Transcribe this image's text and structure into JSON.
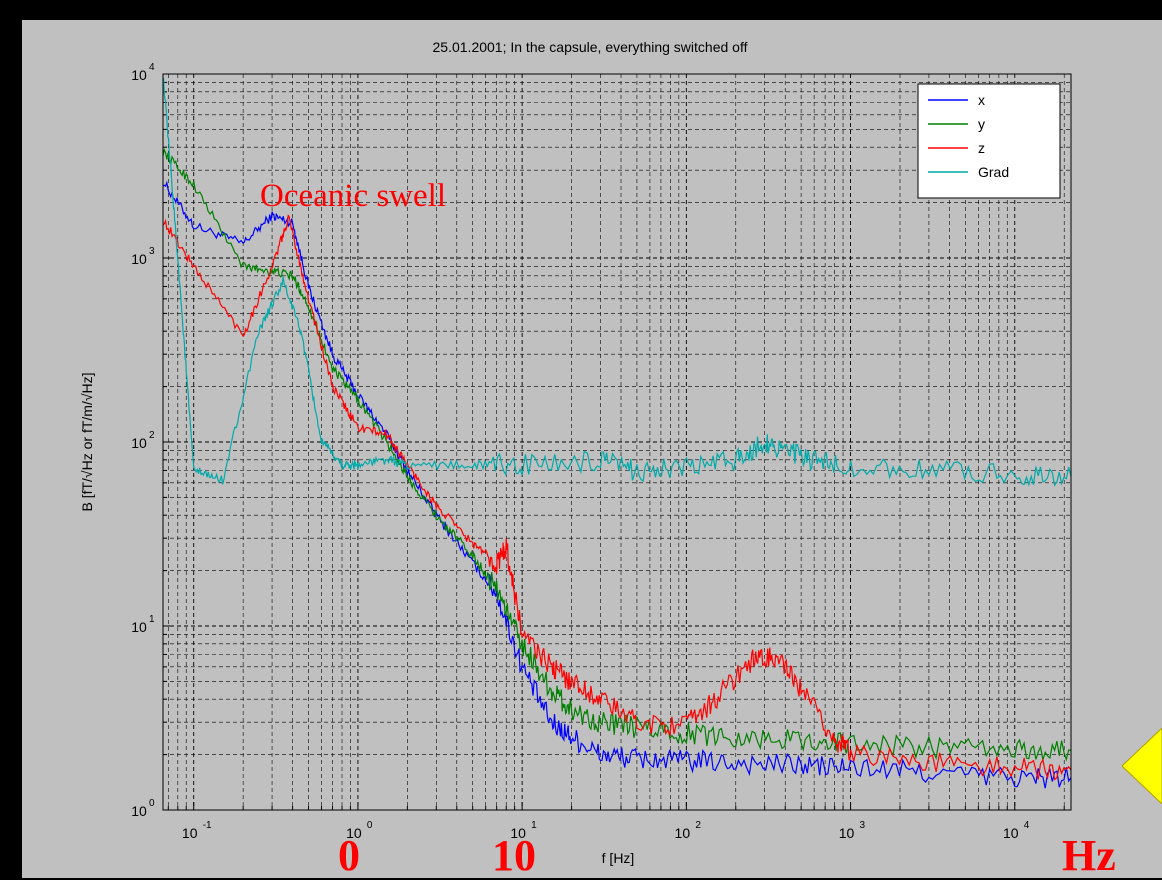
{
  "chart_data": {
    "type": "line",
    "title": "25.01.2001; In the capsule, everything switched off",
    "xlabel": "f [Hz]",
    "ylabel": "B [fT/√Hz or fT/m/√Hz]",
    "xscale": "log",
    "yscale": "log",
    "xlim": [
      0.065,
      22000
    ],
    "ylim": [
      1,
      10000
    ],
    "x_ticks": [
      {
        "base": "10",
        "exp": "-1"
      },
      {
        "base": "10",
        "exp": "0"
      },
      {
        "base": "10",
        "exp": "1"
      },
      {
        "base": "10",
        "exp": "2"
      },
      {
        "base": "10",
        "exp": "3"
      },
      {
        "base": "10",
        "exp": "4"
      }
    ],
    "y_ticks": [
      {
        "base": "10",
        "exp": "0"
      },
      {
        "base": "10",
        "exp": "1"
      },
      {
        "base": "10",
        "exp": "2"
      },
      {
        "base": "10",
        "exp": "3"
      },
      {
        "base": "10",
        "exp": "4"
      }
    ],
    "grid": true,
    "legend_position": "top-right",
    "series": [
      {
        "name": "x",
        "color": "#0000ff",
        "points": [
          [
            0.065,
            2600
          ],
          [
            0.1,
            1500
          ],
          [
            0.2,
            1200
          ],
          [
            0.3,
            1700
          ],
          [
            0.4,
            1550
          ],
          [
            0.5,
            700
          ],
          [
            0.7,
            300
          ],
          [
            1,
            180
          ],
          [
            1.5,
            110
          ],
          [
            2,
            70
          ],
          [
            3,
            40
          ],
          [
            5,
            22
          ],
          [
            7,
            15
          ],
          [
            10,
            6
          ],
          [
            15,
            3
          ],
          [
            20,
            2.5
          ],
          [
            30,
            2
          ],
          [
            50,
            1.9
          ],
          [
            100,
            1.85
          ],
          [
            200,
            1.8
          ],
          [
            500,
            1.75
          ],
          [
            1000,
            1.7
          ],
          [
            3000,
            1.6
          ],
          [
            10000,
            1.5
          ],
          [
            22000,
            1.5
          ]
        ]
      },
      {
        "name": "y",
        "color": "#008000",
        "points": [
          [
            0.065,
            3800
          ],
          [
            0.1,
            2500
          ],
          [
            0.2,
            900
          ],
          [
            0.3,
            850
          ],
          [
            0.4,
            800
          ],
          [
            0.5,
            550
          ],
          [
            0.7,
            250
          ],
          [
            1,
            170
          ],
          [
            1.5,
            100
          ],
          [
            2,
            65
          ],
          [
            3,
            40
          ],
          [
            5,
            24
          ],
          [
            7,
            16
          ],
          [
            10,
            8
          ],
          [
            15,
            4.5
          ],
          [
            20,
            3.5
          ],
          [
            30,
            3
          ],
          [
            50,
            2.8
          ],
          [
            100,
            2.6
          ],
          [
            200,
            2.5
          ],
          [
            500,
            2.4
          ],
          [
            1000,
            2.3
          ],
          [
            3000,
            2.2
          ],
          [
            10000,
            2.1
          ],
          [
            22000,
            2.1
          ]
        ]
      },
      {
        "name": "z",
        "color": "#ff0000",
        "points": [
          [
            0.065,
            1600
          ],
          [
            0.1,
            900
          ],
          [
            0.2,
            380
          ],
          [
            0.3,
            900
          ],
          [
            0.38,
            1650
          ],
          [
            0.5,
            600
          ],
          [
            0.7,
            200
          ],
          [
            1,
            120
          ],
          [
            1.5,
            110
          ],
          [
            2,
            75
          ],
          [
            3,
            45
          ],
          [
            5,
            28
          ],
          [
            7,
            22
          ],
          [
            8,
            27
          ],
          [
            10,
            9
          ],
          [
            15,
            6
          ],
          [
            20,
            5
          ],
          [
            30,
            4
          ],
          [
            50,
            3
          ],
          [
            100,
            2.9
          ],
          [
            150,
            4
          ],
          [
            250,
            6.5
          ],
          [
            350,
            6.8
          ],
          [
            500,
            4.5
          ],
          [
            800,
            2.4
          ],
          [
            1000,
            2.1
          ],
          [
            3000,
            1.8
          ],
          [
            10000,
            1.7
          ],
          [
            22000,
            1.65
          ]
        ]
      },
      {
        "name": "Grad",
        "color": "#00aaaa",
        "points": [
          [
            0.065,
            10000
          ],
          [
            0.08,
            1000
          ],
          [
            0.1,
            70
          ],
          [
            0.15,
            62
          ],
          [
            0.25,
            400
          ],
          [
            0.35,
            750
          ],
          [
            0.45,
            400
          ],
          [
            0.6,
            100
          ],
          [
            0.8,
            75
          ],
          [
            1,
            75
          ],
          [
            1.5,
            80
          ],
          [
            2,
            75
          ],
          [
            5,
            75
          ],
          [
            10,
            75
          ],
          [
            30,
            78
          ],
          [
            50,
            70
          ],
          [
            100,
            72
          ],
          [
            200,
            80
          ],
          [
            300,
            100
          ],
          [
            400,
            90
          ],
          [
            600,
            78
          ],
          [
            1000,
            73
          ],
          [
            3000,
            70
          ],
          [
            10000,
            67
          ],
          [
            22000,
            65
          ]
        ]
      }
    ]
  },
  "overlays": {
    "annotation": "Oceanic swell",
    "label_0": "0",
    "label_10": "10",
    "label_hz": "Hz"
  }
}
